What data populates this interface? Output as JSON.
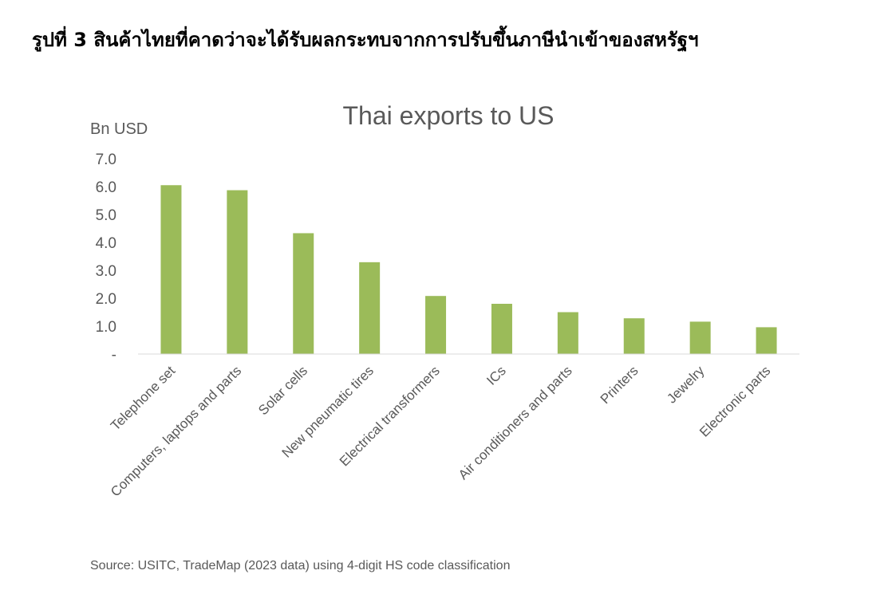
{
  "figure": {
    "title": "รูปที่ 3 สินค้าไทยที่คาดว่าจะได้รับผลกระทบจากการปรับขึ้นภาษีนำเข้าของสหรัฐฯ",
    "source": "Source: USITC, TradeMap (2023 data) using 4-digit HS code classification"
  },
  "chart_data": {
    "type": "bar",
    "title": "Thai exports to US",
    "ylabel": "Bn USD",
    "xlabel": "",
    "categories": [
      "Telephone set",
      "Computers, laptops and parts",
      "Solar cells",
      "New pneumatic tires",
      "Electrical transformers",
      "ICs",
      "Air conditioners and parts",
      "Printers",
      "Jewelry",
      "Electronic parts"
    ],
    "values": [
      6.05,
      5.87,
      4.33,
      3.29,
      2.08,
      1.8,
      1.5,
      1.28,
      1.16,
      0.96
    ],
    "ylim": [
      0,
      7
    ],
    "yticks": [
      0,
      1,
      2,
      3,
      4,
      5,
      6,
      7
    ],
    "ytick_labels": [
      "-",
      "1.0",
      "2.0",
      "3.0",
      "4.0",
      "5.0",
      "6.0",
      "7.0"
    ],
    "bar_color": "#9BBB59",
    "axis_color": "#D9D9D9",
    "text_color": "#595959",
    "grid": false,
    "legend": false
  }
}
